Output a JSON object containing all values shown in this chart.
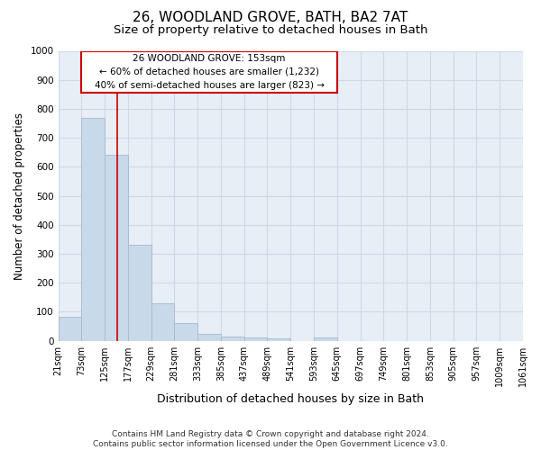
{
  "title": "26, WOODLAND GROVE, BATH, BA2 7AT",
  "subtitle": "Size of property relative to detached houses in Bath",
  "xlabel": "Distribution of detached houses by size in Bath",
  "ylabel": "Number of detached properties",
  "bar_edges": [
    21,
    73,
    125,
    177,
    229,
    281,
    333,
    385,
    437,
    489,
    541,
    593,
    645,
    697,
    749,
    801,
    853,
    905,
    957,
    1009,
    1061
  ],
  "bar_heights": [
    82,
    770,
    640,
    330,
    130,
    60,
    22,
    15,
    10,
    8,
    0,
    10,
    0,
    0,
    0,
    0,
    0,
    0,
    0,
    0
  ],
  "bar_color": "#c8daea",
  "bar_edge_color": "#aabdd0",
  "vline_x": 153,
  "vline_color": "#cc0000",
  "annotation_text_line1": "26 WOODLAND GROVE: 153sqm",
  "annotation_text_line2": "← 60% of detached houses are smaller (1,232)",
  "annotation_text_line3": "40% of semi-detached houses are larger (823) →",
  "annotation_box_color": "#cc0000",
  "annotation_box_facecolor": "white",
  "ylim": [
    0,
    1000
  ],
  "yticks": [
    0,
    100,
    200,
    300,
    400,
    500,
    600,
    700,
    800,
    900,
    1000
  ],
  "grid_color": "#d0d8e4",
  "background_color": "#ffffff",
  "plot_bg_color": "#e8eef6",
  "title_fontsize": 11,
  "subtitle_fontsize": 9.5,
  "ylabel_fontsize": 8.5,
  "xlabel_fontsize": 9,
  "tick_fontsize": 7,
  "footer_text": "Contains HM Land Registry data © Crown copyright and database right 2024.\nContains public sector information licensed under the Open Government Licence v3.0.",
  "footer_fontsize": 6.5
}
